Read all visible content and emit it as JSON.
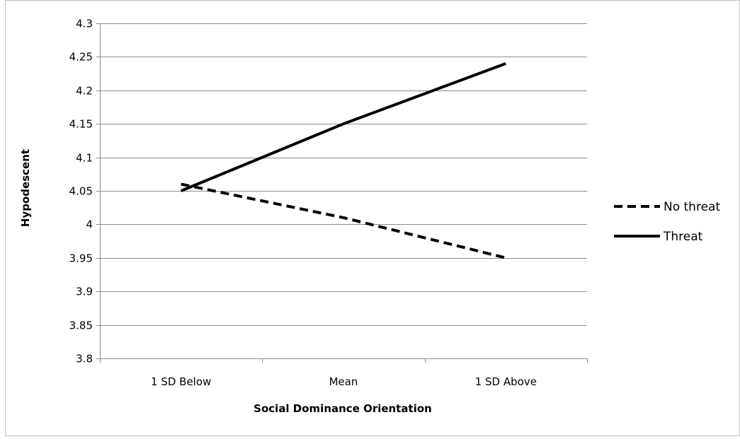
{
  "chart_data": {
    "type": "line",
    "title": "",
    "xlabel": "Social Dominance Orientation",
    "ylabel": "Hypodescent",
    "categories": [
      "1 SD Below",
      "Mean",
      "1 SD Above"
    ],
    "ylim": [
      3.8,
      4.3
    ],
    "y_ticks": [
      "3.8",
      "3.85",
      "3.9",
      "3.95",
      "4",
      "4.05",
      "4.1",
      "4.15",
      "4.2",
      "4.25",
      "4.3"
    ],
    "grid": true,
    "legend_position": "right",
    "series": [
      {
        "name": "No threat",
        "values": [
          4.06,
          4.01,
          3.95
        ],
        "style": "dashed",
        "color": "#000000"
      },
      {
        "name": "Threat",
        "values": [
          4.05,
          4.15,
          4.24
        ],
        "style": "solid",
        "color": "#000000"
      }
    ]
  }
}
